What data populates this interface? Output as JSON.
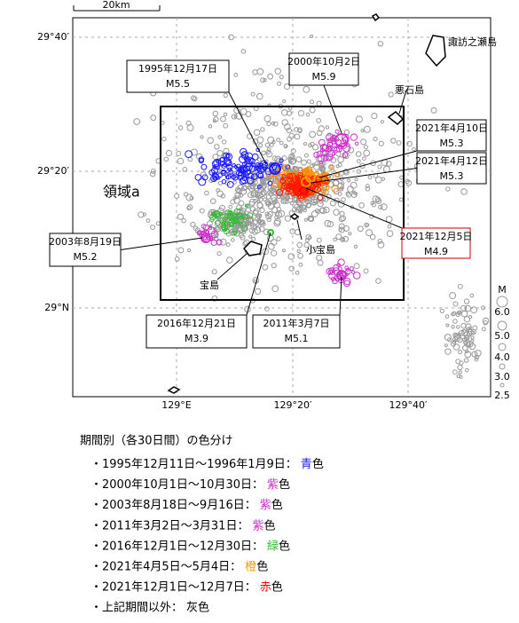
{
  "scale": {
    "label": "20km"
  },
  "lat_labels": [
    "29°40′",
    "29°20′",
    "29°N"
  ],
  "lon_labels": [
    "129°E",
    "129°20′",
    "129°40′"
  ],
  "islands": [
    "諏訪之瀬島",
    "悪石島",
    "小宝島",
    "宝島"
  ],
  "region_label": "領域a",
  "callouts": [
    {
      "date": "1995年12月17日",
      "magnitude": "M5.5"
    },
    {
      "date": "2000年10月2日",
      "magnitude": "M5.9"
    },
    {
      "date": "2021年4月10日",
      "magnitude": "M5.3"
    },
    {
      "date": "2021年4月12日",
      "magnitude": "M5.3"
    },
    {
      "date": "2021年12月5日",
      "magnitude": "M4.9"
    },
    {
      "date": "2003年8月19日",
      "magnitude": "M5.2"
    },
    {
      "date": "2016年12月21日",
      "magnitude": "M3.9"
    },
    {
      "date": "2011年3月7日",
      "magnitude": "M5.1"
    }
  ],
  "magnitude_legend": {
    "title": "M",
    "labels": [
      "6.0",
      "5.0",
      "4.0",
      "3.0",
      "2.5"
    ]
  },
  "legend": {
    "title": "期間別（各30日間）の色分け",
    "items": [
      {
        "period": "・1995年12月11日～1996年1月9日：",
        "color_word": "青",
        "suffix": "色",
        "color": "#1a1aff"
      },
      {
        "period": "・2000年10月1日～10月30日：",
        "color_word": "紫",
        "suffix": "色",
        "color": "#cc33cc"
      },
      {
        "period": "・2003年8月18日～9月16日：",
        "color_word": "紫",
        "suffix": "色",
        "color": "#cc33cc"
      },
      {
        "period": "・2011年3月2日～3月31日：",
        "color_word": "紫",
        "suffix": "色",
        "color": "#cc33cc"
      },
      {
        "period": "・2016年12月1日～12月30日：",
        "color_word": "緑",
        "suffix": "色",
        "color": "#33bb33"
      },
      {
        "period": "・2021年4月5日～5月4日：",
        "color_word": "橙",
        "suffix": "色",
        "color": "#ff9900"
      },
      {
        "period": "・2021年12月1日～12月7日：",
        "color_word": "赤",
        "suffix": "色",
        "color": "#ff0000"
      },
      {
        "period": "・上記期間以外：",
        "color_word": "灰",
        "suffix": "色",
        "color": "#000000"
      }
    ]
  }
}
